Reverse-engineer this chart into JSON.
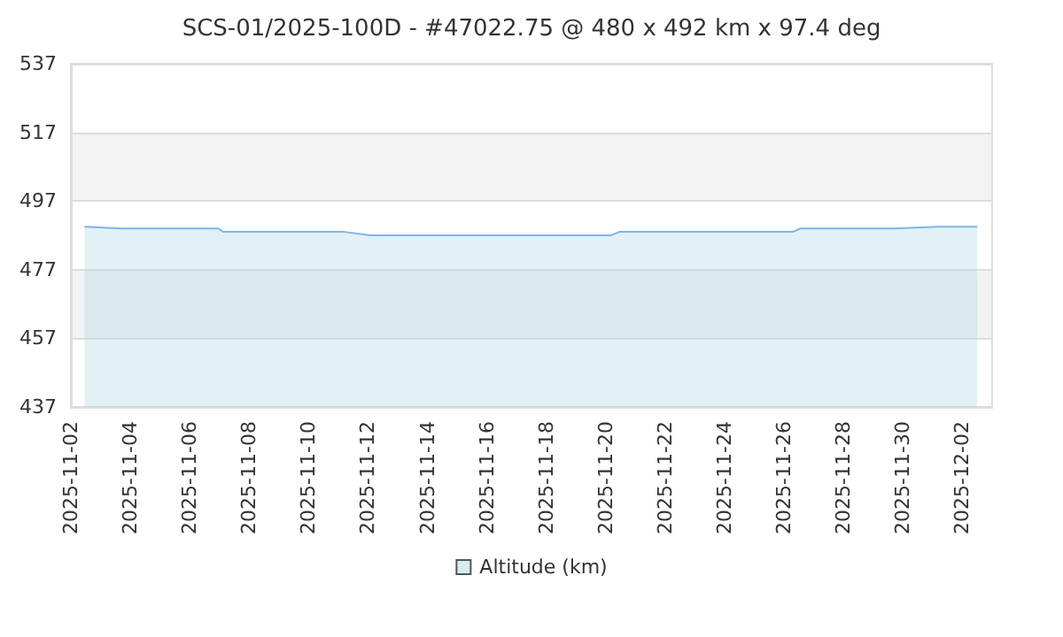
{
  "chart_data": {
    "type": "area",
    "title": "SCS-01/2025-100D - #47022.75 @ 480 x 492 km x 97.4 deg",
    "x": [
      "2025-11-02T11:00",
      "2025-11-03T17:00",
      "2025-11-06T23:00",
      "2025-11-07T03:00",
      "2025-11-11T05:00",
      "2025-11-12T02:00",
      "2025-11-20T04:00",
      "2025-11-20T11:00",
      "2025-11-26T07:00",
      "2025-11-26T13:00",
      "2025-11-29T18:00",
      "2025-12-01T05:00",
      "2025-12-02T12:00"
    ],
    "series": [
      {
        "name": "Altitude (km)",
        "color": "#7cb5ec",
        "values": [
          489.5,
          489,
          489,
          488,
          488,
          487,
          487,
          488,
          488,
          489,
          489,
          489.5,
          489.5
        ]
      }
    ],
    "xlim": [
      "2025-11-02",
      "2025-12-03"
    ],
    "xticks": [
      "2025-11-02",
      "2025-11-04",
      "2025-11-06",
      "2025-11-08",
      "2025-11-10",
      "2025-11-12",
      "2025-11-14",
      "2025-11-16",
      "2025-11-18",
      "2025-11-20",
      "2025-11-22",
      "2025-11-24",
      "2025-11-26",
      "2025-11-28",
      "2025-11-30",
      "2025-12-02"
    ],
    "ylim": [
      437,
      537
    ],
    "yticks": [
      437,
      457,
      477,
      497,
      517,
      537
    ],
    "grid": "y",
    "legend": "bottom",
    "marker": "none"
  }
}
